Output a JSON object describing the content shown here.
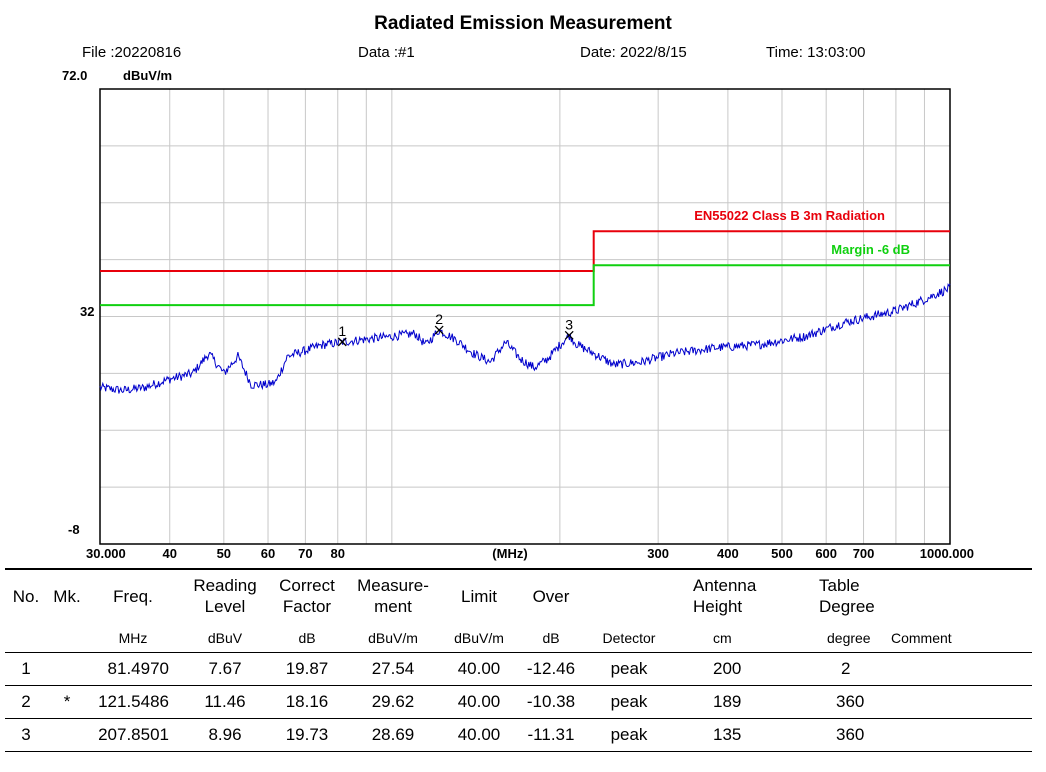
{
  "header": {
    "title": "Radiated Emission Measurement",
    "file": "File :20220816",
    "data": "Data :#1",
    "date": "Date: 2022/8/15",
    "time": "Time: 13:03:00"
  },
  "colors": {
    "limit": "#e8000b",
    "margin": "#10d010",
    "trace": "#0000cc",
    "grid": "#c8c8c8"
  },
  "chart_data": {
    "type": "line",
    "ylabel": "dBuV/m",
    "xlabel": "(MHz)",
    "x_scale": "log",
    "xlim": [
      30,
      1000
    ],
    "ylim": [
      -8,
      72
    ],
    "y_tick_labels": [
      {
        "value": 72,
        "label": "72.0"
      },
      {
        "value": 32,
        "label": "32"
      },
      {
        "value": -8,
        "label": "-8"
      }
    ],
    "x_tick_labels": [
      {
        "value": 30,
        "label": "30.000"
      },
      {
        "value": 40,
        "label": "40"
      },
      {
        "value": 50,
        "label": "50"
      },
      {
        "value": 60,
        "label": "60"
      },
      {
        "value": 70,
        "label": "70"
      },
      {
        "value": 80,
        "label": "80"
      },
      {
        "value": 300,
        "label": "300"
      },
      {
        "value": 400,
        "label": "400"
      },
      {
        "value": 500,
        "label": "500"
      },
      {
        "value": 600,
        "label": "600"
      },
      {
        "value": 700,
        "label": "700"
      },
      {
        "value": 1000,
        "label": "1000.000"
      }
    ],
    "grid": true,
    "limit_line": {
      "name": "EN55022 Class B 3m Radiation",
      "points": [
        [
          30,
          40
        ],
        [
          230,
          40
        ],
        [
          230,
          47
        ],
        [
          1000,
          47
        ]
      ]
    },
    "margin_line": {
      "name": "Margin -6 dB",
      "points": [
        [
          30,
          34
        ],
        [
          230,
          34
        ],
        [
          230,
          41
        ],
        [
          1000,
          41
        ]
      ]
    },
    "trace": {
      "x": [
        30,
        33,
        36,
        40,
        44,
        47,
        50,
        53,
        56,
        60,
        62,
        65,
        70,
        75,
        81.5,
        90,
        100,
        110,
        115,
        121.5,
        130,
        140,
        150,
        160,
        170,
        180,
        190,
        200,
        207.85,
        215,
        230,
        250,
        280,
        320,
        380,
        450,
        550,
        650,
        800,
        900,
        1000
      ],
      "y": [
        19.5,
        19.0,
        19.5,
        21.0,
        22.0,
        25.5,
        22.0,
        25.0,
        20.0,
        20.0,
        20.5,
        25.0,
        26.0,
        27.0,
        27.5,
        28.0,
        28.5,
        29.0,
        27.0,
        29.6,
        28.0,
        25.5,
        24.0,
        27.5,
        24.5,
        23.0,
        24.5,
        27.0,
        28.7,
        27.0,
        25.5,
        23.5,
        24.0,
        25.5,
        26.5,
        27.0,
        28.5,
        31.0,
        33.0,
        35.0,
        37.0
      ]
    },
    "markers": [
      {
        "label": "1",
        "x": 81.497,
        "y": 27.54
      },
      {
        "label": "2",
        "x": 121.5486,
        "y": 29.62
      },
      {
        "label": "3",
        "x": 207.8501,
        "y": 28.69
      }
    ]
  },
  "table": {
    "headers": {
      "no": "No.",
      "mk": "Mk.",
      "freq": "Freq.",
      "reading_1": "Reading",
      "reading_2": "Level",
      "correct_1": "Correct",
      "correct_2": "Factor",
      "measure_1": "Measure-",
      "measure_2": "ment",
      "limit": "Limit",
      "over": "Over",
      "antenna_1": "Antenna",
      "antenna_2": "Height",
      "table_1": "Table",
      "table_2": "Degree"
    },
    "units": {
      "freq": "MHz",
      "reading": "dBuV",
      "correct": "dB",
      "measure": "dBuV/m",
      "limit": "dBuV/m",
      "over": "dB",
      "detector": "Detector",
      "antenna": "cm",
      "degree": "degree",
      "comment": "Comment"
    },
    "rows": [
      {
        "no": "1",
        "mk": "",
        "freq": "81.4970",
        "reading": "7.67",
        "correct": "19.87",
        "measure": "27.54",
        "limit": "40.00",
        "over": "-12.46",
        "detector": "peak",
        "height": "200",
        "degree": "2",
        "comment": ""
      },
      {
        "no": "2",
        "mk": "*",
        "freq": "121.5486",
        "reading": "11.46",
        "correct": "18.16",
        "measure": "29.62",
        "limit": "40.00",
        "over": "-10.38",
        "detector": "peak",
        "height": "189",
        "degree": "360",
        "comment": ""
      },
      {
        "no": "3",
        "mk": "",
        "freq": "207.8501",
        "reading": "8.96",
        "correct": "19.73",
        "measure": "28.69",
        "limit": "40.00",
        "over": "-11.31",
        "detector": "peak",
        "height": "135",
        "degree": "360",
        "comment": ""
      }
    ]
  }
}
